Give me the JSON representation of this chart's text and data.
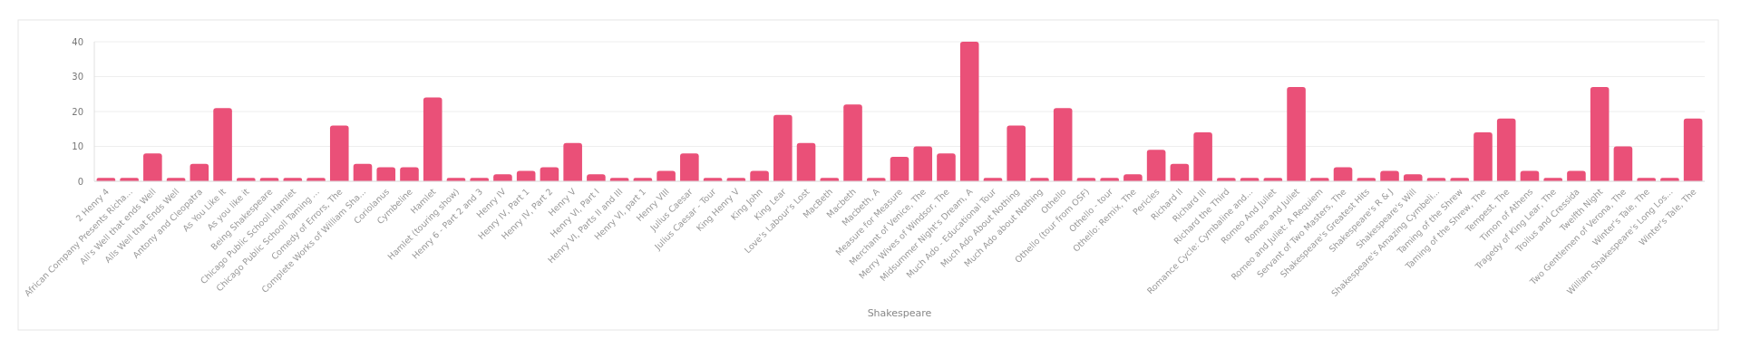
{
  "chart_data": {
    "type": "bar",
    "xlabel": "Shakespeare",
    "color": "#ea5078",
    "ylim": [
      0,
      40
    ],
    "yticks": [
      0,
      10,
      20,
      30,
      40
    ],
    "grid": "y",
    "categories": [
      "2 Henry 4",
      "African Company Presents Richa...",
      "All's Well that ends Well",
      "Alls Well that Ends Well",
      "Antony and Cleopatra",
      "As You Like It",
      "As you like it",
      "Being Shakespeare",
      "Chicago Public Schooll Hamlet",
      "Chicago Public Schooll Taming ...",
      "Comedy of Errors, The",
      "Complete Works of William Sha...",
      "Coriolanus",
      "Cymbeline",
      "Hamlet",
      "Hamlet (touring show)",
      "Henry 6 - Part 2 and 3",
      "Henry IV",
      "Henry IV, Part 1",
      "Henry IV, Part 2",
      "Henry V",
      "Henry VI, Part I",
      "Henry VI, Parts II and III",
      "Henry VI, part 1",
      "Henry VIII",
      "Julius Caesar",
      "Julius Caesar - Tour",
      "King Henry V",
      "King John",
      "King Lear",
      "Love's Labour's Lost",
      "MacBeth",
      "Macbeth",
      "Macbeth, A",
      "Measure for Measure",
      "Merchant of Venice, The",
      "Merry Wives of Windsor, The",
      "Midsummer Night's Dream, A",
      "Much Ado - Educational Tour",
      "Much Ado About Nothing",
      "Much Ado about Nothing",
      "Othello",
      "Othello (tour from OSF)",
      "Othello - tour",
      "Othello: Remix, The",
      "Pericles",
      "Richard II",
      "Richard III",
      "Richard the Third",
      "Romance Cycle: Cymbaline and...",
      "Romeo And Juliet",
      "Romeo and Juliet",
      "Romeo and Juliet: A Requiem",
      "Servant of Two Masters, The",
      "Shakespeare's Greatest Hits",
      "Shakespeare's R & J",
      "Shakespeare's Will",
      "Shakespeare's Amazing Cymbeli...",
      "Taming of the Shrew",
      "Taming of the Shrew, The",
      "Tempest, The",
      "Timon of Athens",
      "Tragedy of King Lear, The",
      "Troilus and Cressida",
      "Twelfth Night",
      "Two Gentlemen of Verona, The",
      "Winter's Tale, The",
      "William Shakespeare's Long Los...",
      "Winter's Tale, The"
    ],
    "values": [
      1,
      1,
      8,
      1,
      5,
      21,
      1,
      1,
      1,
      1,
      16,
      5,
      4,
      4,
      24,
      1,
      1,
      2,
      3,
      4,
      11,
      2,
      1,
      1,
      3,
      8,
      1,
      1,
      3,
      19,
      11,
      1,
      22,
      1,
      7,
      10,
      8,
      40,
      1,
      16,
      1,
      21,
      1,
      1,
      2,
      9,
      5,
      14,
      1,
      1,
      1,
      27,
      1,
      4,
      1,
      3,
      2,
      1,
      1,
      14,
      18,
      3,
      1,
      3,
      27,
      10,
      1,
      1,
      18
    ]
  }
}
